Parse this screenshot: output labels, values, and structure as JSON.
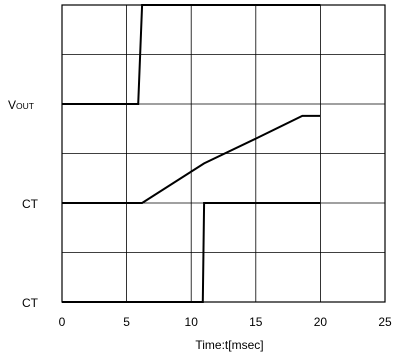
{
  "chart_data": {
    "type": "line",
    "title": "",
    "xlabel": "Time:t[msec]",
    "xlim": [
      0,
      25
    ],
    "xticks": [
      0,
      5,
      10,
      15,
      20,
      25
    ],
    "grid": true,
    "rows": 6,
    "traces": [
      {
        "label": "VOUT",
        "label_main": "V",
        "label_sub": "OUT",
        "row_top": 0,
        "row_bottom": 2,
        "points": [
          [
            0,
            0.0
          ],
          [
            5.9,
            0.0
          ],
          [
            6.2,
            1.0
          ],
          [
            20.0,
            1.0
          ]
        ]
      },
      {
        "label": "CT",
        "row_top": 2,
        "row_bottom": 4,
        "points": [
          [
            0,
            0.0
          ],
          [
            6.2,
            0.0
          ],
          [
            11.0,
            0.4
          ],
          [
            15.0,
            0.65
          ],
          [
            18.6,
            0.88
          ],
          [
            20.0,
            0.88
          ]
        ]
      },
      {
        "label": "CT",
        "row_top": 4,
        "row_bottom": 6,
        "points": [
          [
            0,
            0.0
          ],
          [
            10.9,
            0.0
          ],
          [
            11.0,
            1.0
          ],
          [
            20.0,
            1.0
          ]
        ]
      }
    ]
  }
}
